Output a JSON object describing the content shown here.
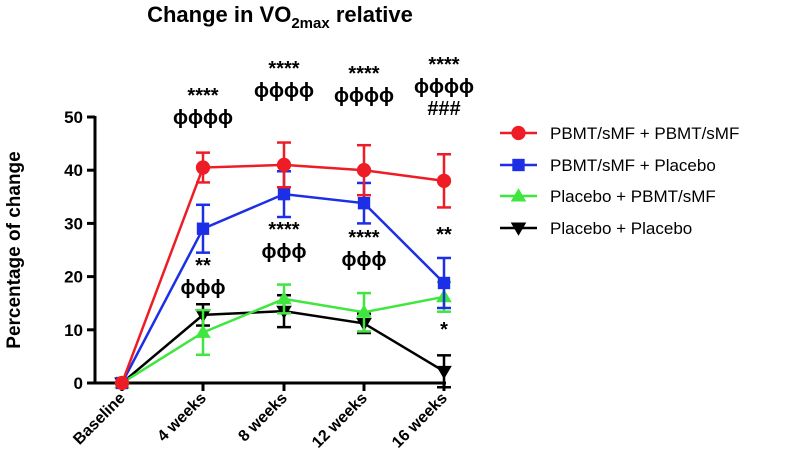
{
  "chart_data": {
    "type": "line",
    "title": "Change in VO",
    "title_sub": "2max",
    "title_suffix": " relative",
    "xlabel": "",
    "ylabel": "Percentage of change",
    "categories": [
      "Baseline",
      "4 weeks",
      "8 weeks",
      "12 weeks",
      "16 weeks"
    ],
    "ylim": [
      0,
      50
    ],
    "yticks": [
      "0",
      "10",
      "20",
      "30",
      "40",
      "50"
    ],
    "series": [
      {
        "name": "PBMT/sMF + PBMT/sMF",
        "color": "#ee1c25",
        "marker": "circle",
        "values": [
          0,
          40.5,
          41,
          40,
          38
        ],
        "errors": [
          0,
          2.8,
          4.2,
          4.7,
          5
        ]
      },
      {
        "name": "PBMT/sMF + Placebo",
        "color": "#1c2ee6",
        "marker": "square",
        "values": [
          0,
          29,
          35.5,
          33.8,
          18.8
        ],
        "errors": [
          0,
          4.5,
          4.3,
          3.8,
          4.7
        ]
      },
      {
        "name": "Placebo + PBMT/sMF",
        "color": "#3ee63e",
        "marker": "triangle-up",
        "values": [
          0,
          9.5,
          15.8,
          13.3,
          16.2
        ],
        "errors": [
          0,
          4.2,
          2.7,
          3.6,
          2.8
        ]
      },
      {
        "name": "Placebo + Placebo",
        "color": "#000000",
        "marker": "triangle-down",
        "values": [
          0,
          12.8,
          13.5,
          11.2,
          2.2
        ],
        "errors": [
          0,
          2,
          3,
          1.8,
          3
        ]
      }
    ],
    "legend_position": "right",
    "annotations": [
      {
        "category": "4 weeks",
        "lines": [
          "****",
          "ϕϕϕϕ"
        ],
        "placement": "upper"
      },
      {
        "category": "8 weeks",
        "lines": [
          "****",
          "ϕϕϕϕ"
        ],
        "placement": "upper"
      },
      {
        "category": "12 weeks",
        "lines": [
          "****",
          "ϕϕϕϕ"
        ],
        "placement": "upper"
      },
      {
        "category": "16 weeks",
        "lines": [
          "****",
          "ϕϕϕϕ",
          "###"
        ],
        "placement": "upper"
      },
      {
        "category": "4 weeks",
        "lines": [
          "**",
          "ϕϕϕ"
        ],
        "placement": "middle"
      },
      {
        "category": "8 weeks",
        "lines": [
          "****",
          "ϕϕϕ"
        ],
        "placement": "middle"
      },
      {
        "category": "12 weeks",
        "lines": [
          "****",
          "ϕϕϕ"
        ],
        "placement": "middle"
      },
      {
        "category": "16 weeks",
        "lines": [
          "**"
        ],
        "placement": "middle"
      },
      {
        "category": "16 weeks",
        "lines": [
          "*"
        ],
        "placement": "lower"
      }
    ]
  }
}
